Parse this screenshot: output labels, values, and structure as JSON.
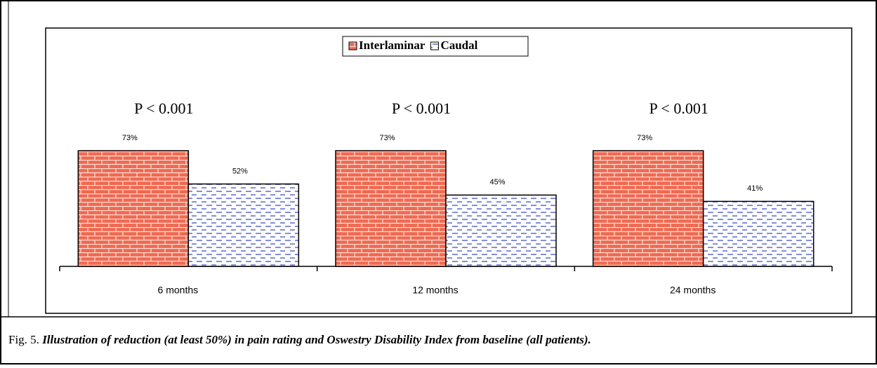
{
  "chart_data": {
    "type": "bar",
    "categories": [
      "6 months",
      "12 months",
      "24 months"
    ],
    "series": [
      {
        "name": "Interlaminar",
        "color": "#ef6a52",
        "values": [
          73,
          73,
          73
        ],
        "value_labels": [
          "73%",
          "73%",
          "73%"
        ]
      },
      {
        "name": "Caudal",
        "color": "#4f5fc8",
        "values": [
          52,
          45,
          41
        ],
        "value_labels": [
          "52%",
          "45%",
          "41%"
        ]
      }
    ],
    "annotations": [
      "P < 0.001",
      "P < 0.001",
      "P < 0.001"
    ],
    "legend": "top"
  },
  "caption": {
    "label": "Fig. 5.",
    "text": "Illustration of reduction (at least 50%) in pain rating and Oswestry Disability Index from baseline (all patients)."
  }
}
